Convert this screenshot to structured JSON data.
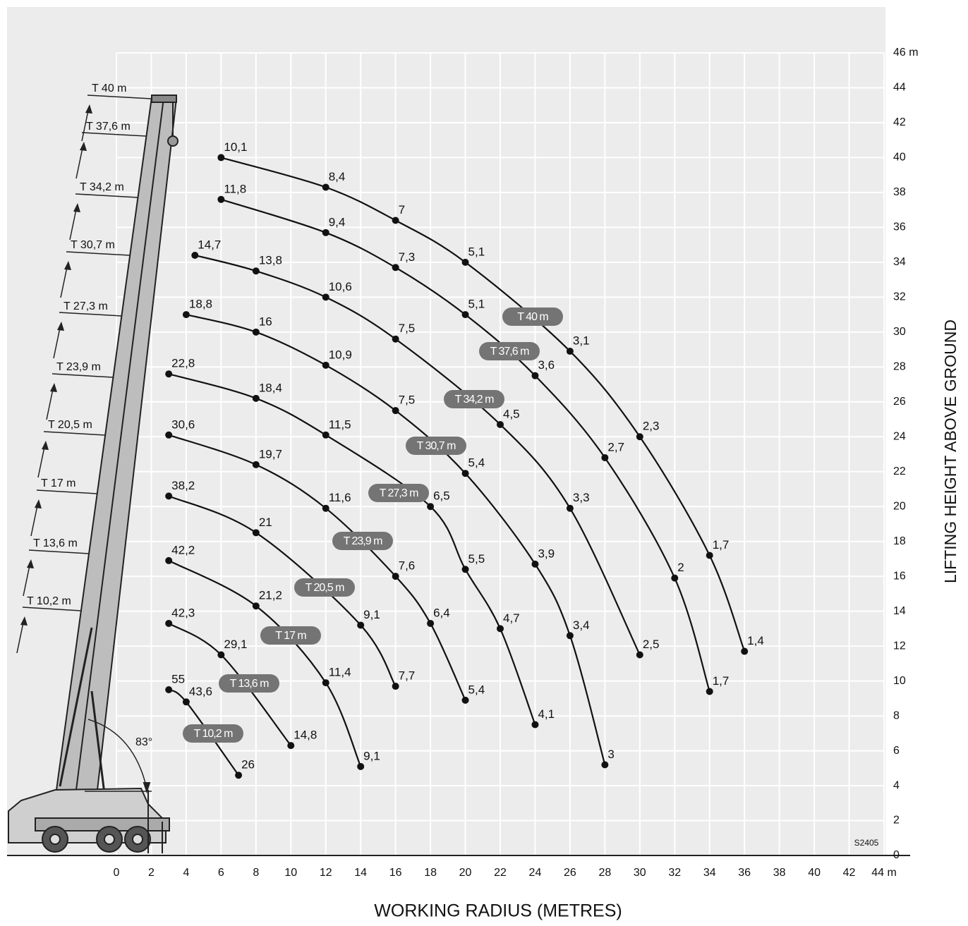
{
  "chart_data": {
    "type": "line",
    "x_label": "WORKING RADIUS (METRES)",
    "y_label": "LIFTING HEIGHT ABOVE GROUND",
    "code": "S2405",
    "angle_label": "83°",
    "xlim": [
      0,
      44
    ],
    "ylim": [
      0,
      46
    ],
    "xticks": [
      0,
      2,
      4,
      6,
      8,
      10,
      12,
      14,
      16,
      18,
      20,
      22,
      24,
      26,
      28,
      30,
      32,
      34,
      36,
      38,
      40,
      42,
      {
        "value": 44,
        "label": "44 m"
      }
    ],
    "yticks": [
      0,
      2,
      4,
      6,
      8,
      10,
      12,
      14,
      16,
      18,
      20,
      22,
      24,
      26,
      28,
      30,
      32,
      34,
      36,
      38,
      40,
      42,
      44,
      {
        "value": 46,
        "label": "46 m"
      }
    ],
    "grid": true,
    "series": [
      {
        "name": "T 40 m",
        "color": "#111111",
        "x": [
          6,
          12,
          16,
          20,
          26,
          30,
          34,
          36
        ],
        "values": [
          40,
          38.3,
          36.4,
          34,
          28.9,
          24,
          17.2,
          11.7
        ],
        "labels": [
          "10,1",
          "8,4",
          "7",
          "5,1",
          "3,1",
          "2,3",
          "1,7",
          "1,4"
        ]
      },
      {
        "name": "T 37,6 m",
        "color": "#111111",
        "x": [
          6,
          12,
          16,
          20,
          24,
          28,
          32,
          34
        ],
        "values": [
          37.6,
          35.7,
          33.7,
          31,
          27.5,
          22.8,
          15.9,
          9.4
        ],
        "labels": [
          "11,8",
          "9,4",
          "7,3",
          "5,1",
          "3,6",
          "2,7",
          "2",
          "1,7"
        ]
      },
      {
        "name": "T 34,2 m",
        "color": "#111111",
        "x": [
          4.5,
          8,
          12,
          16,
          22,
          26,
          30
        ],
        "values": [
          34.4,
          33.5,
          32,
          29.6,
          24.7,
          19.9,
          11.5
        ],
        "labels": [
          "14,7",
          "13,8",
          "10,6",
          "7,5",
          "4,5",
          "3,3",
          "2,5"
        ]
      },
      {
        "name": "T 30,7 m",
        "color": "#111111",
        "x": [
          4,
          8,
          12,
          16,
          20,
          24,
          26,
          28
        ],
        "values": [
          31,
          30,
          28.1,
          25.5,
          21.9,
          16.7,
          12.6,
          5.2
        ],
        "labels": [
          "18,8",
          "16",
          "10,9",
          "7,5",
          "5,4",
          "3,9",
          "3,4",
          "3"
        ]
      },
      {
        "name": "T 27,3 m",
        "color": "#111111",
        "x": [
          3,
          8,
          12,
          18,
          20,
          22,
          24
        ],
        "values": [
          27.6,
          26.2,
          24.1,
          20,
          16.4,
          13,
          7.5
        ],
        "labels": [
          "22,8",
          "18,4",
          "11,5",
          "6,5",
          "5,5",
          "4,7",
          "4,1"
        ]
      },
      {
        "name": "T 23,9 m",
        "color": "#111111",
        "x": [
          3,
          8,
          12,
          16,
          18,
          20
        ],
        "values": [
          24.1,
          22.4,
          19.9,
          16,
          13.3,
          8.9
        ],
        "labels": [
          "30,6",
          "19,7",
          "11,6",
          "7,6",
          "6,4",
          "5,4"
        ]
      },
      {
        "name": "T 20,5 m",
        "color": "#111111",
        "x": [
          3,
          8,
          14,
          16
        ],
        "values": [
          20.6,
          18.5,
          13.2,
          9.7
        ],
        "labels": [
          "38,2",
          "21",
          "9,1",
          "7,7"
        ]
      },
      {
        "name": "T 17 m",
        "color": "#111111",
        "x": [
          3,
          8,
          12,
          14
        ],
        "values": [
          16.9,
          14.3,
          9.9,
          5.1
        ],
        "labels": [
          "42,2",
          "21,2",
          "11,4",
          "9,1"
        ]
      },
      {
        "name": "T 13,6 m",
        "color": "#111111",
        "x": [
          3,
          6,
          10
        ],
        "values": [
          13.3,
          11.5,
          6.3
        ],
        "labels": [
          "42,3",
          "29,1",
          "14,8"
        ]
      },
      {
        "name": "T 10,2 m",
        "color": "#111111",
        "x": [
          3,
          4,
          7
        ],
        "values": [
          9.5,
          8.8,
          4.6
        ],
        "labels": [
          "55",
          "43,6",
          "26"
        ]
      }
    ]
  }
}
